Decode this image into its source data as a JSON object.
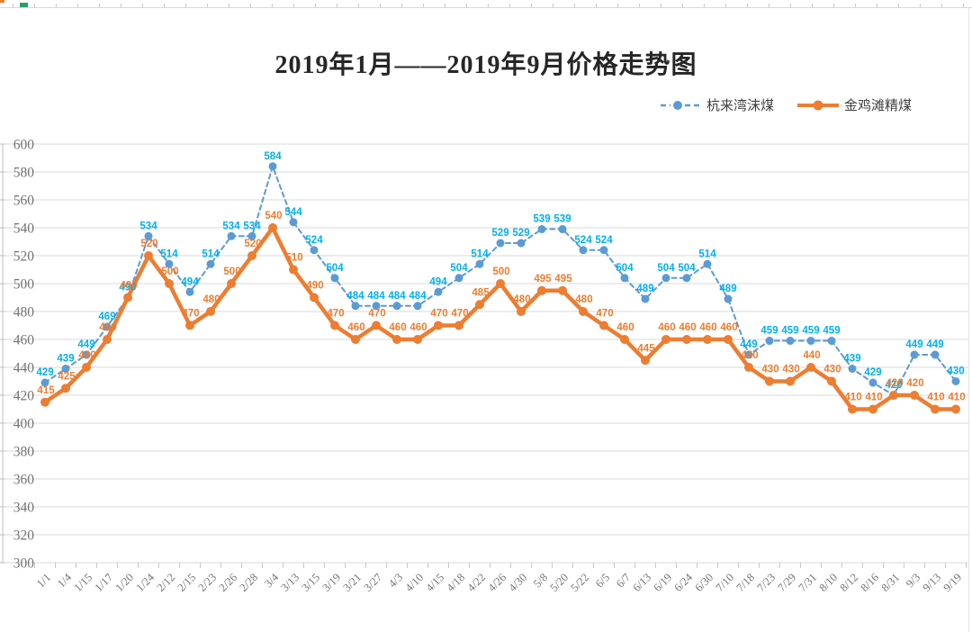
{
  "chart_data": {
    "type": "line",
    "title": "2019年1月——2019年9月价格走势图",
    "xlabel": "",
    "ylabel": "",
    "ylim": [
      300,
      600
    ],
    "yticks": [
      300,
      320,
      340,
      360,
      380,
      400,
      420,
      440,
      460,
      480,
      500,
      520,
      540,
      560,
      580,
      600
    ],
    "grid": true,
    "legend_position": "top-right",
    "data_labels": true,
    "categories": [
      "1/1",
      "1/4",
      "1/15",
      "1/17",
      "1/20",
      "1/24",
      "2/12",
      "2/15",
      "2/23",
      "2/26",
      "2/28",
      "3/4",
      "3/13",
      "3/15",
      "3/19",
      "3/21",
      "3/27",
      "4/3",
      "4/10",
      "4/15",
      "4/18",
      "4/22",
      "4/26",
      "4/30",
      "5/8",
      "5/20",
      "5/22",
      "6/5",
      "6/7",
      "6/13",
      "6/19",
      "6/24",
      "6/30",
      "7/10",
      "7/18",
      "7/23",
      "7/29",
      "7/31",
      "8/10",
      "8/12",
      "8/16",
      "8/31",
      "9/3",
      "9/13",
      "9/19"
    ],
    "series": [
      {
        "name": "杭来湾沫煤",
        "style": "dashed",
        "color": "#5b9bd5",
        "label_color": "#00b0f0",
        "values": [
          429,
          439,
          449,
          469,
          490,
          534,
          514,
          494,
          514,
          534,
          534,
          584,
          544,
          524,
          504,
          484,
          484,
          484,
          484,
          494,
          504,
          514,
          529,
          529,
          539,
          539,
          524,
          524,
          504,
          489,
          504,
          504,
          514,
          489,
          449,
          459,
          459,
          459,
          459,
          439,
          429,
          420,
          449,
          449,
          430
        ]
      },
      {
        "name": "金鸡滩精煤",
        "style": "solid",
        "color": "#ed7d31",
        "label_color": "#ed7d31",
        "values": [
          415,
          425,
          440,
          460,
          490,
          520,
          500,
          470,
          480,
          500,
          520,
          540,
          510,
          490,
          470,
          460,
          470,
          460,
          460,
          470,
          470,
          485,
          500,
          480,
          495,
          495,
          480,
          470,
          460,
          445,
          460,
          460,
          460,
          460,
          440,
          430,
          430,
          440,
          430,
          410,
          410,
          420,
          420,
          410,
          410
        ]
      }
    ],
    "axis_text_color": "#737373",
    "grid_color": "#d9d9d9"
  }
}
